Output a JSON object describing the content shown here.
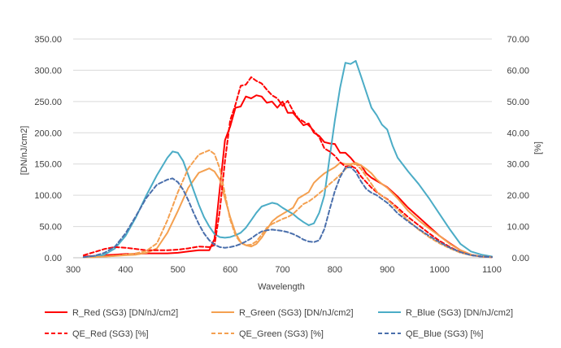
{
  "chart_data": {
    "type": "line",
    "xlabel": "Wavelength",
    "ylabel_left": "[DN/nJ/cm2]",
    "ylabel_right": "[%]",
    "xlim": [
      300,
      1100
    ],
    "ylim_left": [
      0,
      350
    ],
    "ylim_right": [
      0,
      70
    ],
    "x_ticks": [
      "300",
      "400",
      "500",
      "600",
      "700",
      "800",
      "900",
      "1000",
      "1100"
    ],
    "y_left_ticks": [
      "0.00",
      "50.00",
      "100.00",
      "150.00",
      "200.00",
      "250.00",
      "300.00",
      "350.00"
    ],
    "y_right_ticks": [
      "0.00",
      "10.00",
      "20.00",
      "30.00",
      "40.00",
      "50.00",
      "60.00",
      "70.00"
    ],
    "grid": "horizontal",
    "legend_position": "bottom",
    "series": [
      {
        "name": "R_Red (SG3) [DN/nJ/cm2]",
        "axis": "left",
        "color": "#ff0000",
        "dash": "solid",
        "x": [
          320,
          340,
          360,
          380,
          400,
          420,
          440,
          460,
          480,
          500,
          520,
          540,
          560,
          570,
          580,
          590,
          600,
          610,
          620,
          630,
          640,
          650,
          660,
          670,
          680,
          690,
          700,
          710,
          720,
          730,
          740,
          750,
          760,
          770,
          780,
          790,
          800,
          810,
          820,
          830,
          840,
          850,
          860,
          870,
          880,
          890,
          900,
          920,
          940,
          960,
          980,
          1000,
          1020,
          1040,
          1060,
          1080,
          1100
        ],
        "y": [
          2,
          3,
          4,
          5,
          6,
          6,
          7,
          7,
          7,
          8,
          10,
          12,
          12,
          30,
          110,
          188,
          210,
          240,
          242,
          258,
          255,
          260,
          258,
          248,
          250,
          240,
          250,
          232,
          232,
          222,
          212,
          215,
          200,
          195,
          185,
          183,
          182,
          168,
          168,
          160,
          150,
          148,
          135,
          128,
          123,
          118,
          113,
          98,
          80,
          65,
          50,
          35,
          23,
          12,
          5,
          2,
          1
        ]
      },
      {
        "name": "R_Green (SG3) [DN/nJ/cm2]",
        "axis": "left",
        "color": "#f4a050",
        "dash": "solid",
        "x": [
          320,
          340,
          360,
          380,
          400,
          420,
          440,
          460,
          480,
          500,
          520,
          540,
          560,
          570,
          580,
          590,
          600,
          610,
          620,
          630,
          640,
          650,
          660,
          670,
          680,
          690,
          700,
          710,
          720,
          730,
          740,
          750,
          760,
          770,
          780,
          790,
          800,
          810,
          820,
          830,
          840,
          850,
          860,
          870,
          880,
          890,
          900,
          920,
          940,
          960,
          980,
          1000,
          1020,
          1040,
          1060,
          1080,
          1100
        ],
        "y": [
          1,
          1,
          2,
          3,
          4,
          5,
          8,
          15,
          40,
          75,
          112,
          136,
          143,
          138,
          125,
          95,
          65,
          40,
          25,
          20,
          18,
          22,
          32,
          45,
          58,
          65,
          70,
          75,
          80,
          95,
          100,
          105,
          120,
          128,
          135,
          140,
          145,
          152,
          150,
          150,
          152,
          148,
          142,
          135,
          125,
          118,
          112,
          95,
          75,
          60,
          47,
          35,
          22,
          12,
          5,
          2,
          1
        ]
      },
      {
        "name": "R_Blue (SG3) [DN/nJ/cm2]",
        "axis": "left",
        "color": "#4bacc6",
        "dash": "solid",
        "x": [
          320,
          340,
          360,
          380,
          400,
          420,
          440,
          460,
          480,
          490,
          500,
          510,
          520,
          530,
          540,
          550,
          560,
          570,
          580,
          590,
          600,
          610,
          620,
          630,
          640,
          650,
          660,
          670,
          680,
          690,
          700,
          710,
          720,
          730,
          740,
          750,
          760,
          770,
          780,
          790,
          800,
          810,
          820,
          830,
          840,
          850,
          860,
          870,
          880,
          890,
          900,
          910,
          920,
          940,
          960,
          980,
          1000,
          1020,
          1040,
          1060,
          1080,
          1100
        ],
        "y": [
          1,
          2,
          5,
          15,
          35,
          65,
          100,
          132,
          160,
          170,
          168,
          155,
          132,
          108,
          85,
          65,
          50,
          38,
          33,
          32,
          33,
          36,
          40,
          48,
          60,
          72,
          82,
          85,
          88,
          86,
          80,
          75,
          70,
          63,
          57,
          52,
          55,
          72,
          100,
          160,
          220,
          272,
          312,
          310,
          315,
          290,
          265,
          240,
          228,
          213,
          205,
          180,
          160,
          138,
          118,
          95,
          70,
          45,
          22,
          10,
          5,
          2
        ]
      },
      {
        "name": "QE_Red (SG3) [%]",
        "axis": "right",
        "color": "#ff0000",
        "dash": "dashed",
        "x": [
          320,
          340,
          360,
          380,
          400,
          420,
          440,
          460,
          480,
          500,
          520,
          540,
          560,
          570,
          580,
          590,
          600,
          610,
          620,
          630,
          640,
          650,
          660,
          670,
          680,
          690,
          700,
          710,
          720,
          730,
          740,
          750,
          760,
          770,
          780,
          790,
          800,
          810,
          820,
          830,
          840,
          850,
          860,
          870,
          880,
          890,
          900,
          920,
          940,
          960,
          980,
          1000,
          1020,
          1040,
          1060,
          1080,
          1100
        ],
        "y": [
          0.8,
          1.8,
          2.8,
          3.4,
          3.2,
          2.8,
          2.4,
          2.4,
          2.4,
          2.6,
          3.0,
          3.6,
          3.4,
          4.0,
          15.0,
          31.0,
          44.0,
          49.0,
          55.0,
          55.4,
          57.8,
          56.6,
          55.8,
          53.8,
          52.0,
          51.0,
          48.6,
          50.2,
          47.0,
          44.6,
          43.6,
          42.4,
          40.6,
          38.6,
          35.0,
          34.0,
          32.6,
          30.6,
          29.2,
          29.4,
          28.6,
          26.0,
          24.2,
          22.4,
          21.0,
          19.8,
          18.8,
          16.0,
          13.0,
          10.4,
          7.8,
          5.4,
          3.4,
          1.8,
          0.8,
          0.4,
          0.2
        ]
      },
      {
        "name": "QE_Green (SG3) [%]",
        "axis": "right",
        "color": "#f4a050",
        "dash": "dashed",
        "x": [
          320,
          340,
          360,
          380,
          400,
          420,
          440,
          460,
          480,
          500,
          520,
          540,
          560,
          570,
          580,
          590,
          600,
          610,
          620,
          630,
          640,
          650,
          660,
          670,
          680,
          690,
          700,
          710,
          720,
          730,
          740,
          750,
          760,
          770,
          780,
          790,
          800,
          810,
          820,
          830,
          840,
          850,
          860,
          870,
          880,
          890,
          900,
          920,
          940,
          960,
          980,
          1000,
          1020,
          1040,
          1060,
          1080,
          1100
        ],
        "y": [
          0.2,
          0.2,
          0.4,
          0.6,
          1.0,
          1.4,
          2.2,
          4.6,
          12.0,
          21.0,
          28.6,
          33.0,
          34.4,
          33.2,
          28.6,
          20.4,
          12.2,
          7.2,
          4.8,
          4.0,
          4.2,
          5.2,
          7.4,
          9.6,
          10.8,
          11.6,
          12.4,
          13.0,
          14.0,
          15.6,
          17.2,
          18.0,
          19.2,
          20.6,
          22.0,
          23.6,
          25.0,
          26.6,
          28.4,
          29.6,
          30.0,
          28.4,
          26.0,
          23.6,
          21.2,
          19.8,
          18.6,
          15.4,
          12.0,
          9.0,
          6.6,
          4.6,
          3.0,
          1.6,
          0.8,
          0.4,
          0.2
        ]
      },
      {
        "name": "QE_Blue (SG3) [%]",
        "axis": "right",
        "color": "#4a6fac",
        "dash": "dashed",
        "x": [
          320,
          340,
          360,
          380,
          400,
          420,
          440,
          460,
          480,
          490,
          500,
          510,
          520,
          530,
          540,
          550,
          560,
          570,
          580,
          590,
          600,
          610,
          620,
          630,
          640,
          650,
          660,
          670,
          680,
          690,
          700,
          710,
          720,
          730,
          740,
          750,
          760,
          770,
          780,
          790,
          800,
          810,
          820,
          830,
          840,
          850,
          860,
          870,
          880,
          890,
          900,
          910,
          920,
          940,
          960,
          980,
          1000,
          1020,
          1040,
          1060,
          1080,
          1100
        ],
        "y": [
          0.2,
          0.6,
          1.6,
          3.6,
          7.8,
          13.4,
          19.2,
          23.4,
          25.0,
          25.4,
          24.2,
          21.8,
          18.4,
          14.4,
          10.8,
          7.8,
          5.6,
          4.2,
          3.4,
          3.2,
          3.4,
          3.8,
          4.4,
          5.2,
          6.2,
          7.4,
          8.4,
          8.8,
          9.0,
          8.8,
          8.6,
          8.2,
          7.6,
          6.8,
          5.8,
          5.2,
          5.0,
          5.6,
          9.2,
          15.4,
          21.4,
          25.8,
          28.8,
          29.0,
          27.4,
          24.4,
          22.0,
          20.8,
          20.0,
          18.8,
          17.6,
          16.0,
          14.2,
          11.6,
          9.2,
          7.0,
          5.0,
          3.2,
          1.8,
          0.8,
          0.4,
          0.2
        ]
      }
    ]
  }
}
